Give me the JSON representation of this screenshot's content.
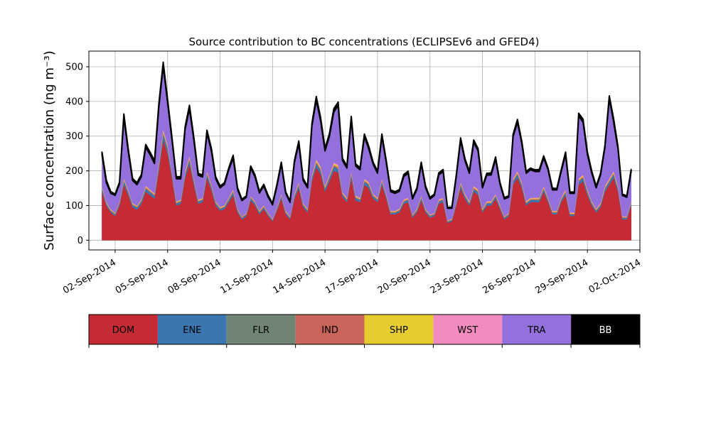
{
  "chart_data": {
    "type": "area",
    "title": "Source contribution to BC concentrations (ECLIPSEv6 and GFED4)",
    "ylabel": "Surface concentration (ng m⁻³)",
    "xlabel": "",
    "ylim": [
      -28,
      545
    ],
    "xlim": [
      "2014-08-31T12:00",
      "2014-10-02T00:00"
    ],
    "yticks": [
      0,
      100,
      200,
      300,
      400,
      500
    ],
    "xticks": [
      {
        "date": "2014-09-02",
        "label": "02-Sep-2014"
      },
      {
        "date": "2014-09-05",
        "label": "05-Sep-2014"
      },
      {
        "date": "2014-09-08",
        "label": "08-Sep-2014"
      },
      {
        "date": "2014-09-11",
        "label": "11-Sep-2014"
      },
      {
        "date": "2014-09-14",
        "label": "14-Sep-2014"
      },
      {
        "date": "2014-09-17",
        "label": "17-Sep-2014"
      },
      {
        "date": "2014-09-20",
        "label": "20-Sep-2014"
      },
      {
        "date": "2014-09-23",
        "label": "23-Sep-2014"
      },
      {
        "date": "2014-09-26",
        "label": "26-Sep-2014"
      },
      {
        "date": "2014-09-29",
        "label": "29-Sep-2014"
      },
      {
        "date": "2014-10-02",
        "label": "02-Oct-2014"
      }
    ],
    "grid": true,
    "stacked": true,
    "x": [
      "2014-09-01T06:00",
      "2014-09-01T12:00",
      "2014-09-01T18:00",
      "2014-09-02T00:00",
      "2014-09-02T06:00",
      "2014-09-02T12:00",
      "2014-09-02T18:00",
      "2014-09-03T00:00",
      "2014-09-03T06:00",
      "2014-09-03T12:00",
      "2014-09-03T18:00",
      "2014-09-04T00:00",
      "2014-09-04T06:00",
      "2014-09-04T12:00",
      "2014-09-04T18:00",
      "2014-09-05T00:00",
      "2014-09-05T06:00",
      "2014-09-05T12:00",
      "2014-09-05T18:00",
      "2014-09-06T00:00",
      "2014-09-06T06:00",
      "2014-09-06T12:00",
      "2014-09-06T18:00",
      "2014-09-07T00:00",
      "2014-09-07T06:00",
      "2014-09-07T12:00",
      "2014-09-07T18:00",
      "2014-09-08T00:00",
      "2014-09-08T06:00",
      "2014-09-08T12:00",
      "2014-09-08T18:00",
      "2014-09-09T00:00",
      "2014-09-09T06:00",
      "2014-09-09T12:00",
      "2014-09-09T18:00",
      "2014-09-10T00:00",
      "2014-09-10T06:00",
      "2014-09-10T12:00",
      "2014-09-10T18:00",
      "2014-09-11T00:00",
      "2014-09-11T06:00",
      "2014-09-11T12:00",
      "2014-09-11T18:00",
      "2014-09-12T00:00",
      "2014-09-12T06:00",
      "2014-09-12T12:00",
      "2014-09-12T18:00",
      "2014-09-13T00:00",
      "2014-09-13T06:00",
      "2014-09-13T12:00",
      "2014-09-13T18:00",
      "2014-09-14T00:00",
      "2014-09-14T06:00",
      "2014-09-14T12:00",
      "2014-09-14T18:00",
      "2014-09-15T00:00",
      "2014-09-15T06:00",
      "2014-09-15T12:00",
      "2014-09-15T18:00",
      "2014-09-16T00:00",
      "2014-09-16T06:00",
      "2014-09-16T12:00",
      "2014-09-16T18:00",
      "2014-09-17T00:00",
      "2014-09-17T06:00",
      "2014-09-17T12:00",
      "2014-09-17T18:00",
      "2014-09-18T00:00",
      "2014-09-18T06:00",
      "2014-09-18T12:00",
      "2014-09-18T18:00",
      "2014-09-19T00:00",
      "2014-09-19T06:00",
      "2014-09-19T12:00",
      "2014-09-19T18:00",
      "2014-09-20T00:00",
      "2014-09-20T06:00",
      "2014-09-20T12:00",
      "2014-09-20T18:00",
      "2014-09-21T00:00",
      "2014-09-21T06:00",
      "2014-09-21T12:00",
      "2014-09-21T18:00",
      "2014-09-22T00:00",
      "2014-09-22T06:00",
      "2014-09-22T12:00",
      "2014-09-22T18:00",
      "2014-09-23T00:00",
      "2014-09-23T06:00",
      "2014-09-23T12:00",
      "2014-09-23T18:00",
      "2014-09-24T00:00",
      "2014-09-24T06:00",
      "2014-09-24T12:00",
      "2014-09-24T18:00",
      "2014-09-25T00:00",
      "2014-09-25T06:00",
      "2014-09-25T12:00",
      "2014-09-25T18:00",
      "2014-09-26T00:00",
      "2014-09-26T06:00",
      "2014-09-26T12:00",
      "2014-09-26T18:00",
      "2014-09-27T00:00",
      "2014-09-27T06:00",
      "2014-09-27T12:00",
      "2014-09-27T18:00",
      "2014-09-28T00:00",
      "2014-09-28T06:00",
      "2014-09-28T12:00",
      "2014-09-28T18:00",
      "2014-09-29T00:00",
      "2014-09-29T06:00",
      "2014-09-29T12:00",
      "2014-09-29T18:00",
      "2014-09-30T00:00",
      "2014-09-30T06:00",
      "2014-09-30T12:00",
      "2014-09-30T18:00",
      "2014-10-01T00:00",
      "2014-10-01T06:00",
      "2014-10-01T12:00"
    ],
    "series": [
      {
        "name": "DOM",
        "color": "#c52a35",
        "values": [
          140,
          100,
          80,
          70,
          100,
          160,
          130,
          95,
          88,
          105,
          140,
          130,
          120,
          200,
          290,
          250,
          180,
          100,
          105,
          180,
          220,
          160,
          105,
          110,
          180,
          145,
          100,
          85,
          90,
          110,
          130,
          80,
          60,
          70,
          115,
          100,
          75,
          90,
          70,
          55,
          85,
          120,
          75,
          60,
          120,
          150,
          95,
          80,
          170,
          210,
          190,
          140,
          170,
          200,
          195,
          125,
          110,
          180,
          115,
          110,
          160,
          150,
          120,
          110,
          160,
          120,
          75,
          75,
          80,
          105,
          110,
          65,
          80,
          115,
          80,
          65,
          70,
          105,
          110,
          50,
          55,
          100,
          150,
          120,
          100,
          140,
          130,
          80,
          100,
          100,
          120,
          90,
          60,
          70,
          160,
          180,
          150,
          100,
          110,
          110,
          110,
          140,
          110,
          75,
          75,
          110,
          130,
          70,
          70,
          160,
          170,
          130,
          100,
          80,
          95,
          140,
          160,
          180,
          140,
          60,
          60,
          100
        ]
      },
      {
        "name": "ENE",
        "color": "#3a76af",
        "values": [
          8,
          5,
          4,
          4,
          6,
          10,
          8,
          6,
          6,
          7,
          9,
          8,
          8,
          12,
          16,
          14,
          10,
          6,
          6,
          10,
          12,
          10,
          6,
          6,
          10,
          9,
          6,
          5,
          5,
          7,
          8,
          5,
          4,
          4,
          7,
          6,
          5,
          5,
          4,
          3,
          5,
          7,
          4,
          4,
          7,
          9,
          6,
          5,
          10,
          12,
          11,
          8,
          10,
          12,
          11,
          7,
          6,
          10,
          7,
          6,
          9,
          9,
          7,
          6,
          9,
          7,
          4,
          4,
          5,
          6,
          6,
          4,
          5,
          7,
          5,
          4,
          4,
          6,
          6,
          3,
          3,
          6,
          9,
          7,
          6,
          8,
          8,
          5,
          6,
          6,
          7,
          5,
          4,
          4,
          9,
          10,
          9,
          6,
          6,
          6,
          6,
          8,
          6,
          4,
          4,
          6,
          8,
          4,
          4,
          9,
          10,
          8,
          6,
          5,
          6,
          8,
          9,
          10,
          8,
          4,
          4,
          6
        ]
      },
      {
        "name": "FLR",
        "color": "#6f8472",
        "values": [
          1,
          1,
          1,
          1,
          1,
          1,
          1,
          1,
          1,
          1,
          1,
          1,
          1,
          1,
          1,
          1,
          1,
          1,
          1,
          1,
          1,
          1,
          1,
          1,
          1,
          1,
          1,
          1,
          1,
          1,
          1,
          1,
          1,
          1,
          1,
          1,
          1,
          1,
          1,
          1,
          1,
          1,
          1,
          1,
          1,
          1,
          1,
          1,
          1,
          1,
          1,
          1,
          1,
          1,
          1,
          1,
          1,
          1,
          1,
          1,
          1,
          1,
          1,
          1,
          1,
          1,
          1,
          1,
          1,
          1,
          1,
          1,
          1,
          1,
          1,
          1,
          1,
          1,
          1,
          1,
          1,
          1,
          1,
          1,
          1,
          1,
          1,
          1,
          1,
          1,
          1,
          1,
          1,
          1,
          1,
          1,
          1,
          1,
          1,
          1,
          1,
          1,
          1,
          1,
          1,
          1,
          1,
          1,
          1,
          1,
          1,
          1,
          1,
          1,
          1,
          1,
          1,
          1,
          1,
          1,
          1,
          1
        ]
      },
      {
        "name": "IND",
        "color": "#c9645a",
        "values": [
          3,
          2,
          2,
          2,
          2,
          3,
          3,
          2,
          2,
          2,
          3,
          3,
          3,
          4,
          5,
          4,
          3,
          2,
          2,
          3,
          4,
          3,
          2,
          2,
          3,
          3,
          2,
          2,
          2,
          2,
          3,
          2,
          2,
          2,
          2,
          2,
          2,
          2,
          2,
          1,
          2,
          2,
          2,
          2,
          2,
          3,
          2,
          2,
          3,
          4,
          4,
          3,
          3,
          4,
          4,
          2,
          2,
          3,
          2,
          2,
          3,
          3,
          2,
          2,
          3,
          2,
          2,
          2,
          2,
          2,
          2,
          2,
          2,
          2,
          2,
          2,
          2,
          2,
          2,
          1,
          1,
          2,
          3,
          2,
          2,
          3,
          3,
          2,
          2,
          2,
          2,
          2,
          2,
          2,
          3,
          3,
          3,
          2,
          2,
          2,
          2,
          3,
          2,
          2,
          2,
          2,
          3,
          2,
          2,
          3,
          3,
          3,
          2,
          2,
          2,
          3,
          3,
          3,
          3,
          2,
          2,
          2
        ]
      },
      {
        "name": "SHP",
        "color": "#e6cd2f",
        "values": [
          2,
          2,
          2,
          1,
          2,
          3,
          2,
          2,
          2,
          2,
          3,
          2,
          2,
          4,
          5,
          4,
          3,
          2,
          2,
          3,
          4,
          3,
          2,
          2,
          3,
          3,
          2,
          2,
          2,
          2,
          3,
          2,
          1,
          1,
          2,
          2,
          2,
          2,
          1,
          1,
          2,
          2,
          2,
          1,
          2,
          3,
          2,
          2,
          3,
          4,
          4,
          3,
          3,
          4,
          4,
          2,
          2,
          3,
          2,
          2,
          3,
          3,
          2,
          2,
          3,
          2,
          2,
          2,
          2,
          2,
          2,
          1,
          2,
          2,
          2,
          1,
          1,
          2,
          2,
          1,
          1,
          2,
          3,
          2,
          2,
          3,
          3,
          2,
          2,
          2,
          2,
          2,
          1,
          1,
          3,
          3,
          3,
          2,
          2,
          2,
          2,
          3,
          2,
          2,
          2,
          2,
          3,
          2,
          2,
          3,
          3,
          3,
          2,
          2,
          2,
          3,
          3,
          3,
          3,
          1,
          1,
          2
        ]
      },
      {
        "name": "WST",
        "color": "#f28bbf",
        "values": [
          2,
          1,
          1,
          1,
          1,
          2,
          2,
          1,
          1,
          1,
          2,
          2,
          2,
          3,
          4,
          3,
          2,
          1,
          1,
          2,
          3,
          2,
          1,
          1,
          2,
          2,
          1,
          1,
          1,
          1,
          2,
          1,
          1,
          1,
          1,
          1,
          1,
          1,
          1,
          1,
          1,
          2,
          1,
          1,
          2,
          2,
          1,
          1,
          2,
          3,
          3,
          2,
          2,
          3,
          3,
          2,
          2,
          2,
          2,
          2,
          2,
          2,
          2,
          2,
          2,
          2,
          1,
          1,
          1,
          2,
          2,
          1,
          1,
          2,
          1,
          1,
          1,
          2,
          2,
          1,
          1,
          1,
          2,
          2,
          2,
          2,
          2,
          1,
          2,
          2,
          2,
          2,
          1,
          1,
          2,
          3,
          2,
          2,
          2,
          2,
          2,
          2,
          2,
          1,
          1,
          2,
          2,
          1,
          1,
          2,
          3,
          2,
          2,
          1,
          2,
          2,
          2,
          3,
          2,
          1,
          1,
          2
        ]
      },
      {
        "name": "TRA",
        "color": "#9370db",
        "values": [
          90,
          55,
          45,
          50,
          50,
          175,
          110,
          65,
          60,
          65,
          110,
          100,
          85,
          160,
          180,
          120,
          90,
          65,
          60,
          120,
          135,
          110,
          70,
          60,
          110,
          95,
          65,
          55,
          60,
          80,
          90,
          55,
          45,
          45,
          80,
          70,
          50,
          55,
          45,
          40,
          60,
          85,
          50,
          40,
          90,
          110,
          65,
          60,
          140,
          170,
          130,
          100,
          110,
          145,
          170,
          90,
          85,
          150,
          85,
          80,
          120,
          95,
          85,
          70,
          120,
          90,
          55,
          50,
          50,
          65,
          70,
          45,
          55,
          90,
          60,
          45,
          50,
          70,
          75,
          35,
          30,
          70,
          120,
          95,
          80,
          125,
          110,
          60,
          75,
          75,
          100,
          60,
          50,
          45,
          120,
          140,
          110,
          80,
          80,
          75,
          75,
          80,
          80,
          60,
          60,
          75,
          100,
          55,
          55,
          180,
          150,
          100,
          80,
          60,
          80,
          110,
          230,
          140,
          105,
          60,
          55,
          85
        ]
      },
      {
        "name": "BB",
        "color": "#000000",
        "values": [
          8,
          7,
          5,
          4,
          5,
          10,
          8,
          6,
          6,
          6,
          8,
          8,
          8,
          10,
          12,
          10,
          8,
          6,
          6,
          8,
          10,
          8,
          6,
          6,
          8,
          8,
          6,
          5,
          5,
          6,
          8,
          5,
          4,
          4,
          6,
          6,
          5,
          5,
          5,
          4,
          5,
          6,
          5,
          4,
          6,
          8,
          6,
          5,
          8,
          10,
          10,
          8,
          8,
          10,
          10,
          7,
          6,
          8,
          6,
          6,
          8,
          8,
          6,
          6,
          8,
          6,
          5,
          5,
          5,
          6,
          6,
          4,
          5,
          6,
          5,
          4,
          4,
          6,
          6,
          3,
          3,
          5,
          7,
          6,
          6,
          7,
          7,
          5,
          5,
          6,
          6,
          5,
          4,
          4,
          7,
          8,
          7,
          5,
          5,
          5,
          6,
          6,
          5,
          5,
          4,
          5,
          7,
          4,
          4,
          8,
          9,
          7,
          6,
          5,
          5,
          6,
          8,
          10,
          7,
          4,
          4,
          6
        ]
      }
    ]
  },
  "legend": {
    "items": [
      {
        "label": "DOM",
        "color": "#c52a35",
        "text_color": "#000000"
      },
      {
        "label": "ENE",
        "color": "#3a76af",
        "text_color": "#000000"
      },
      {
        "label": "FLR",
        "color": "#6f8472",
        "text_color": "#000000"
      },
      {
        "label": "IND",
        "color": "#c9645a",
        "text_color": "#000000"
      },
      {
        "label": "SHP",
        "color": "#e6cd2f",
        "text_color": "#000000"
      },
      {
        "label": "WST",
        "color": "#f28bbf",
        "text_color": "#000000"
      },
      {
        "label": "TRA",
        "color": "#9370db",
        "text_color": "#000000"
      },
      {
        "label": "BB",
        "color": "#000000",
        "text_color": "#ffffff"
      }
    ]
  }
}
